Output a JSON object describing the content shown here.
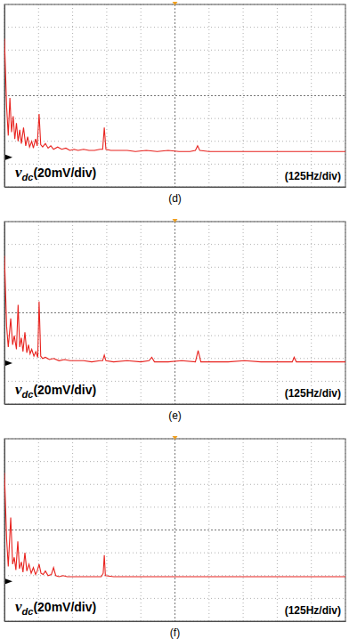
{
  "chart_data": [
    {
      "type": "line",
      "title": "(d)",
      "ylabel": [
        "v",
        "dc",
        "(20mV/div)"
      ],
      "xlabel": "(125Hz/div)",
      "xlim": [
        0,
        1250
      ],
      "xticks": [
        0,
        125,
        250,
        375,
        500,
        625,
        750,
        875,
        1000,
        1125,
        1250
      ],
      "ylim": [
        0,
        160
      ],
      "yticks": [
        0,
        20,
        40,
        60,
        80,
        100,
        120,
        140,
        160
      ],
      "grid": true,
      "tick_labels": false,
      "color": "#e8231f",
      "reference_level": 26,
      "x": [
        0,
        8,
        14,
        20,
        26,
        32,
        38,
        44,
        50,
        56,
        62,
        70,
        78,
        85,
        92,
        100,
        106,
        114,
        120,
        127,
        133,
        140,
        150,
        160,
        170,
        180,
        195,
        210,
        225,
        240,
        255,
        270,
        290,
        310,
        330,
        350,
        360,
        366,
        372,
        390,
        420,
        450,
        480,
        520,
        560,
        600,
        640,
        680,
        700,
        708,
        716,
        750,
        800,
        850,
        900,
        950,
        1000,
        1050,
        1100,
        1150,
        1200,
        1250
      ],
      "values": [
        130,
        70,
        45,
        78,
        48,
        62,
        42,
        56,
        40,
        50,
        38,
        52,
        36,
        44,
        35,
        40,
        34,
        42,
        36,
        64,
        37,
        35,
        38,
        34,
        36,
        33,
        35,
        33,
        34,
        32,
        33,
        32,
        33,
        32,
        32,
        33,
        33,
        52,
        33,
        32,
        32,
        32,
        31,
        32,
        31,
        32,
        31,
        31,
        32,
        36,
        32,
        31,
        31,
        31,
        31,
        31,
        31,
        31,
        31,
        31,
        31,
        31
      ]
    },
    {
      "type": "line",
      "title": "(e)",
      "ylabel": [
        "v",
        "dc",
        "(20mV/div)"
      ],
      "xlabel": "(125Hz/div)",
      "xlim": [
        0,
        1250
      ],
      "xticks": [
        0,
        125,
        250,
        375,
        500,
        625,
        750,
        875,
        1000,
        1125,
        1250
      ],
      "ylim": [
        0,
        160
      ],
      "yticks": [
        0,
        20,
        40,
        60,
        80,
        100,
        120,
        140,
        160
      ],
      "grid": true,
      "tick_labels": false,
      "color": "#e8231f",
      "reference_level": 36,
      "x": [
        0,
        8,
        14,
        23,
        30,
        36,
        44,
        50,
        56,
        62,
        68,
        75,
        82,
        88,
        94,
        100,
        108,
        115,
        122,
        127,
        133,
        140,
        150,
        165,
        180,
        200,
        220,
        240,
        260,
        290,
        320,
        350,
        360,
        366,
        372,
        400,
        450,
        500,
        530,
        540,
        550,
        600,
        650,
        700,
        710,
        720,
        760,
        820,
        880,
        940,
        1000,
        1055,
        1062,
        1070,
        1120,
        1180,
        1250
      ],
      "values": [
        130,
        68,
        50,
        75,
        52,
        60,
        48,
        87,
        50,
        58,
        46,
        63,
        45,
        52,
        44,
        48,
        42,
        46,
        41,
        90,
        42,
        40,
        41,
        39,
        40,
        38,
        39,
        38,
        38,
        38,
        37,
        38,
        38,
        43,
        38,
        37,
        38,
        37,
        38,
        41,
        37,
        37,
        38,
        37,
        47,
        37,
        37,
        37,
        38,
        37,
        37,
        37,
        41,
        37,
        37,
        37,
        37
      ]
    },
    {
      "type": "line",
      "title": "(f)",
      "ylabel": [
        "v",
        "dc",
        "(20mV/div)"
      ],
      "xlabel": "(125Hz/div)",
      "xlim": [
        0,
        1250
      ],
      "xticks": [
        0,
        125,
        250,
        375,
        500,
        625,
        750,
        875,
        1000,
        1125,
        1250
      ],
      "ylim": [
        0,
        160
      ],
      "yticks": [
        0,
        20,
        40,
        60,
        80,
        100,
        120,
        140,
        160
      ],
      "grid": true,
      "tick_labels": false,
      "color": "#e8231f",
      "reference_level": 35,
      "x": [
        0,
        8,
        14,
        23,
        30,
        36,
        42,
        49,
        55,
        62,
        68,
        75,
        82,
        90,
        98,
        106,
        114,
        120,
        127,
        134,
        142,
        150,
        160,
        172,
        180,
        188,
        200,
        215,
        230,
        250,
        270,
        300,
        330,
        355,
        362,
        366,
        370,
        400,
        450,
        500,
        550,
        600,
        650,
        700,
        750,
        800,
        850,
        900,
        950,
        1000,
        1050,
        1100,
        1150,
        1200,
        1250
      ],
      "values": [
        130,
        72,
        48,
        91,
        50,
        56,
        45,
        70,
        46,
        52,
        43,
        60,
        44,
        50,
        42,
        47,
        41,
        44,
        50,
        42,
        41,
        44,
        40,
        41,
        47,
        40,
        39,
        40,
        39,
        39,
        39,
        39,
        39,
        39,
        42,
        58,
        40,
        39,
        39,
        39,
        39,
        39,
        39,
        39,
        39,
        39,
        39,
        39,
        39,
        39,
        39,
        39,
        39,
        39,
        39
      ]
    }
  ]
}
